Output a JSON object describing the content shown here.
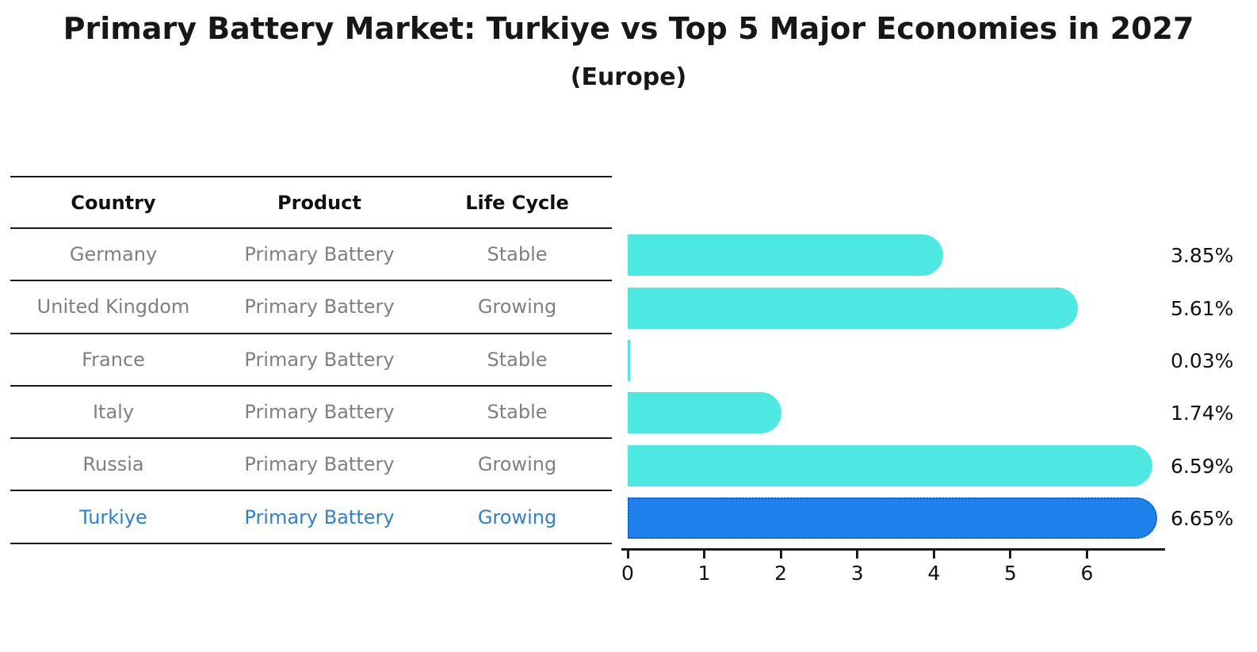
{
  "title": "Primary Battery Market: Turkiye vs Top 5 Major Economies in 2027",
  "subtitle": "(Europe)",
  "table": {
    "headers": [
      "Country",
      "Product",
      "Life Cycle"
    ],
    "rows": [
      {
        "country": "Germany",
        "product": "Primary Battery",
        "life_cycle": "Stable",
        "value_label": "3.85%",
        "highlight": false
      },
      {
        "country": "United Kingdom",
        "product": "Primary Battery",
        "life_cycle": "Growing",
        "value_label": "5.61%",
        "highlight": false
      },
      {
        "country": "France",
        "product": "Primary Battery",
        "life_cycle": "Stable",
        "value_label": "0.03%",
        "highlight": false
      },
      {
        "country": "Italy",
        "product": "Primary Battery",
        "life_cycle": "Stable",
        "value_label": "1.74%",
        "highlight": false
      },
      {
        "country": "Russia",
        "product": "Primary Battery",
        "life_cycle": "Growing",
        "value_label": "6.59%",
        "highlight": false
      },
      {
        "country": "Turkiye",
        "product": "Primary Battery",
        "life_cycle": "Growing",
        "value_label": "6.65%",
        "highlight": true
      }
    ]
  },
  "chart_data": {
    "type": "bar",
    "orientation": "horizontal",
    "title": "Primary Battery Market: Turkiye vs Top 5 Major Economies in 2027",
    "subtitle": "(Europe)",
    "categories": [
      "Germany",
      "United Kingdom",
      "France",
      "Italy",
      "Russia",
      "Turkiye"
    ],
    "values": [
      3.85,
      5.61,
      0.03,
      1.74,
      6.59,
      6.65
    ],
    "value_labels": [
      "3.85%",
      "5.61%",
      "0.03%",
      "1.74%",
      "6.59%",
      "6.65%"
    ],
    "unit": "%",
    "xlim": [
      0,
      7
    ],
    "xticks": [
      0,
      1,
      2,
      3,
      4,
      5,
      6
    ],
    "grid": false,
    "legend": false,
    "highlight_category": "Turkiye"
  },
  "colors": {
    "bar": "#4de8e1",
    "highlight_bar": "#1f81ec",
    "highlight_bar_border": "#0c5ed0",
    "row_text": "#7f7f7f",
    "highlight_text": "#2e7fd0",
    "header_text": "#111111",
    "line": "#1a1a1a",
    "value_text": "#111111"
  }
}
